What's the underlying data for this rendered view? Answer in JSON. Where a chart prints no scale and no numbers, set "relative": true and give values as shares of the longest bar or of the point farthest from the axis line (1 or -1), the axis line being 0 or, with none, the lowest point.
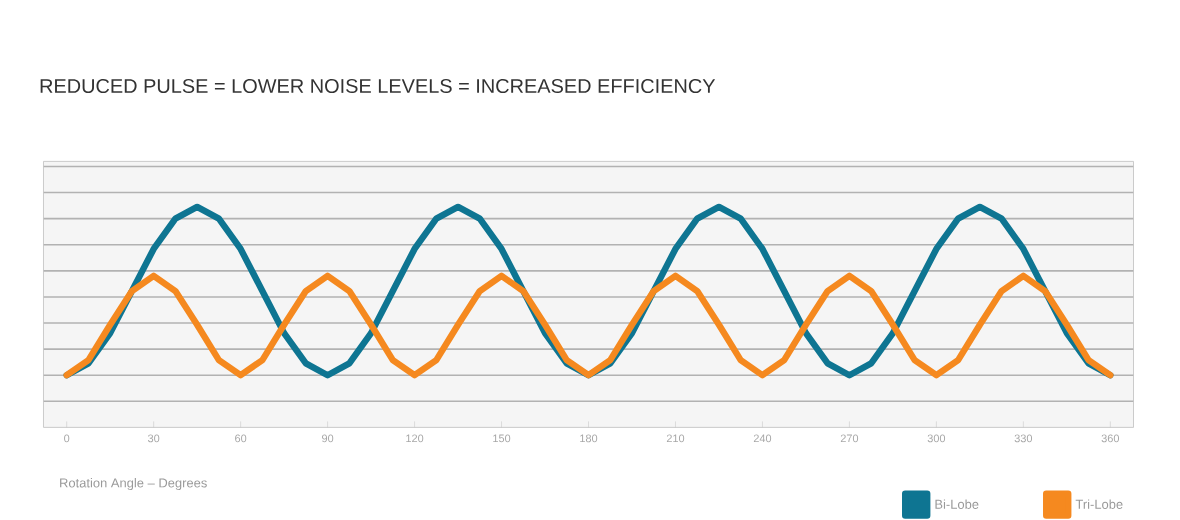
{
  "chart_data": {
    "type": "line",
    "title": "REDUCED PULSE = LOWER NOISE LEVELS = INCREASED EFFICIENCY",
    "xlabel": "Rotation Angle – Degrees",
    "relative": true,
    "grid": "y",
    "legend": "bottom right",
    "tick_labels": "x",
    "marker": "none",
    "line_style": "solid",
    "x": [
      0,
      7.5,
      15,
      22.5,
      30,
      37.5,
      45,
      52.5,
      60,
      67.5,
      75,
      82.5,
      90,
      97.5,
      105,
      112.5,
      120,
      127.5,
      135,
      142.5,
      150,
      157.5,
      165,
      172.5,
      180,
      187.5,
      195,
      202.5,
      210,
      217.5,
      225,
      232.5,
      240,
      247.5,
      255,
      262.5,
      270,
      277.5,
      285,
      292.5,
      300,
      307.5,
      315,
      322.5,
      330,
      337.5,
      345,
      352.5,
      360
    ],
    "xlim": [
      -8,
      368
    ],
    "xticks": [
      0,
      30,
      60,
      90,
      120,
      150,
      180,
      210,
      240,
      270,
      300,
      330,
      360
    ],
    "series": [
      {
        "name": "Bi-Lobe",
        "color": "#0e7592",
        "values": [
          0,
          0.07,
          0.25,
          0.5,
          0.75,
          0.93,
          1,
          0.93,
          0.75,
          0.5,
          0.25,
          0.07,
          0,
          0.07,
          0.25,
          0.5,
          0.75,
          0.93,
          1,
          0.93,
          0.75,
          0.5,
          0.25,
          0.07,
          0,
          0.07,
          0.25,
          0.5,
          0.75,
          0.93,
          1,
          0.93,
          0.75,
          0.5,
          0.25,
          0.07,
          0,
          0.07,
          0.25,
          0.5,
          0.75,
          0.93,
          1,
          0.93,
          0.75,
          0.5,
          0.25,
          0.07,
          0
        ]
      },
      {
        "name": "Tri-Lobe",
        "color": "#f5891f",
        "values": [
          0,
          0.09,
          0.3,
          0.5,
          0.59,
          0.5,
          0.3,
          0.09,
          0,
          0.09,
          0.3,
          0.5,
          0.59,
          0.5,
          0.3,
          0.09,
          0,
          0.09,
          0.3,
          0.5,
          0.59,
          0.5,
          0.3,
          0.09,
          0,
          0.09,
          0.3,
          0.5,
          0.59,
          0.5,
          0.3,
          0.09,
          0,
          0.09,
          0.3,
          0.5,
          0.59,
          0.5,
          0.3,
          0.09,
          0,
          0.09,
          0.3,
          0.5,
          0.59,
          0.5,
          0.3,
          0.09,
          0
        ]
      }
    ]
  }
}
